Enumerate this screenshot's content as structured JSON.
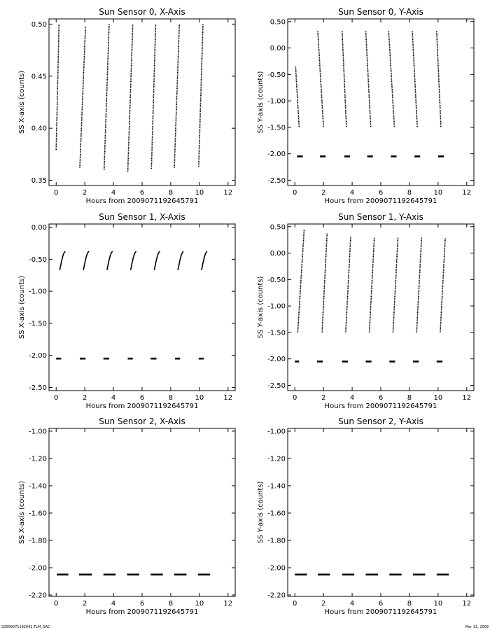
{
  "footer": {
    "left": "S2009071192642.TLM_GAC",
    "right": "Mar 13, 2009"
  },
  "colors": {
    "ink": "#000000",
    "background": "#ffffff"
  },
  "chart_data": [
    {
      "type": "scatter",
      "title": "Sun Sensor 0, X-Axis",
      "xlabel": "Hours from 2009071192645791",
      "ylabel": "SS X-axis (counts)",
      "xlim": [
        -0.5,
        12.5
      ],
      "ylim": [
        0.345,
        0.505
      ],
      "xticks": [
        0,
        2,
        4,
        6,
        8,
        10,
        12
      ],
      "yticks": [
        0.35,
        0.4,
        0.45,
        0.5
      ],
      "ytick_labels": [
        "0.35",
        "0.40",
        "0.45",
        "0.50"
      ],
      "series": [
        {
          "kind": "pass",
          "x0": 0.0,
          "x1": 0.2,
          "y0": 0.379,
          "y1": 0.5
        },
        {
          "kind": "pass",
          "x0": 1.65,
          "x1": 2.05,
          "y0": 0.362,
          "y1": 0.498
        },
        {
          "kind": "pass",
          "x0": 3.35,
          "x1": 3.7,
          "y0": 0.36,
          "y1": 0.5
        },
        {
          "kind": "pass",
          "x0": 5.0,
          "x1": 5.35,
          "y0": 0.358,
          "y1": 0.5
        },
        {
          "kind": "pass",
          "x0": 6.65,
          "x1": 6.95,
          "y0": 0.361,
          "y1": 0.5
        },
        {
          "kind": "pass",
          "x0": 8.25,
          "x1": 8.6,
          "y0": 0.362,
          "y1": 0.5
        },
        {
          "kind": "pass",
          "x0": 9.95,
          "x1": 10.25,
          "y0": 0.363,
          "y1": 0.5
        }
      ]
    },
    {
      "type": "scatter",
      "title": "Sun Sensor 0, Y-Axis",
      "xlabel": "Hours from 2009071192645791",
      "ylabel": "SS Y-axis (counts)",
      "xlim": [
        -0.5,
        12.5
      ],
      "ylim": [
        -2.6,
        0.55
      ],
      "xticks": [
        0,
        2,
        4,
        6,
        8,
        10,
        12
      ],
      "yticks": [
        -2.5,
        -2.0,
        -1.5,
        -1.0,
        -0.5,
        0.0,
        0.5
      ],
      "ytick_labels": [
        "-2.50",
        "-2.00",
        "-1.50",
        "-1.00",
        "-0.50",
        "0.00",
        "0.50"
      ],
      "series": [
        {
          "kind": "pass",
          "x0": 0.05,
          "x1": 0.3,
          "y0": -0.35,
          "y1": -1.5
        },
        {
          "kind": "pass",
          "x0": 1.6,
          "x1": 2.0,
          "y0": 0.32,
          "y1": -1.5
        },
        {
          "kind": "pass",
          "x0": 3.3,
          "x1": 3.6,
          "y0": 0.32,
          "y1": -1.5
        },
        {
          "kind": "pass",
          "x0": 4.95,
          "x1": 5.3,
          "y0": 0.32,
          "y1": -1.5
        },
        {
          "kind": "pass",
          "x0": 6.55,
          "x1": 6.95,
          "y0": 0.32,
          "y1": -1.5
        },
        {
          "kind": "pass",
          "x0": 8.2,
          "x1": 8.55,
          "y0": 0.32,
          "y1": -1.5
        },
        {
          "kind": "pass",
          "x0": 9.9,
          "x1": 10.2,
          "y0": 0.32,
          "y1": -1.5
        },
        {
          "kind": "dash",
          "y": -2.05,
          "segments": [
            [
              0.15,
              0.55
            ],
            [
              1.75,
              2.15
            ],
            [
              3.45,
              3.85
            ],
            [
              5.05,
              5.45
            ],
            [
              6.7,
              7.1
            ],
            [
              8.35,
              8.75
            ],
            [
              10.0,
              10.4
            ]
          ]
        }
      ]
    },
    {
      "type": "scatter",
      "title": "Sun Sensor 1, X-Axis",
      "xlabel": "Hours from 2009071192645791",
      "ylabel": "SS X-axis (counts)",
      "xlim": [
        -0.5,
        12.5
      ],
      "ylim": [
        -2.55,
        0.05
      ],
      "xticks": [
        0,
        2,
        4,
        6,
        8,
        10,
        12
      ],
      "yticks": [
        -2.5,
        -2.0,
        -1.5,
        -1.0,
        -0.5,
        0.0
      ],
      "ytick_labels": [
        "-2.50",
        "-2.00",
        "-1.50",
        "-1.00",
        "-0.50",
        "0.00"
      ],
      "series": [
        {
          "kind": "curve",
          "x0": 0.25,
          "x1": 0.65,
          "y0": -0.67,
          "y1": -0.38
        },
        {
          "kind": "curve",
          "x0": 1.9,
          "x1": 2.3,
          "y0": -0.67,
          "y1": -0.38
        },
        {
          "kind": "curve",
          "x0": 3.55,
          "x1": 3.95,
          "y0": -0.67,
          "y1": -0.38
        },
        {
          "kind": "curve",
          "x0": 5.2,
          "x1": 5.6,
          "y0": -0.67,
          "y1": -0.38
        },
        {
          "kind": "curve",
          "x0": 6.85,
          "x1": 7.25,
          "y0": -0.67,
          "y1": -0.38
        },
        {
          "kind": "curve",
          "x0": 8.5,
          "x1": 8.9,
          "y0": -0.67,
          "y1": -0.38
        },
        {
          "kind": "curve",
          "x0": 10.15,
          "x1": 10.55,
          "y0": -0.67,
          "y1": -0.38
        },
        {
          "kind": "dash",
          "y": -2.05,
          "segments": [
            [
              0.0,
              0.35
            ],
            [
              1.65,
              2.05
            ],
            [
              3.3,
              3.7
            ],
            [
              5.0,
              5.35
            ],
            [
              6.6,
              7.0
            ],
            [
              8.3,
              8.65
            ],
            [
              9.95,
              10.3
            ]
          ]
        }
      ]
    },
    {
      "type": "scatter",
      "title": "Sun Sensor 1, Y-Axis",
      "xlabel": "Hours from 2009071192645791",
      "ylabel": "SS Y-axis (counts)",
      "xlim": [
        -0.5,
        12.5
      ],
      "ylim": [
        -2.6,
        0.55
      ],
      "xticks": [
        0,
        2,
        4,
        6,
        8,
        10,
        12
      ],
      "yticks": [
        -2.5,
        -2.0,
        -1.5,
        -1.0,
        -0.5,
        0.0,
        0.5
      ],
      "ytick_labels": [
        "-2.50",
        "-2.00",
        "-1.50",
        "-1.00",
        "-0.50",
        "0.00",
        "0.50"
      ],
      "series": [
        {
          "kind": "pass",
          "x0": 0.2,
          "x1": 0.65,
          "y0": -1.5,
          "y1": 0.45
        },
        {
          "kind": "pass",
          "x0": 1.9,
          "x1": 2.25,
          "y0": -1.5,
          "y1": 0.37
        },
        {
          "kind": "pass",
          "x0": 3.55,
          "x1": 3.9,
          "y0": -1.5,
          "y1": 0.32
        },
        {
          "kind": "pass",
          "x0": 5.2,
          "x1": 5.55,
          "y0": -1.5,
          "y1": 0.3
        },
        {
          "kind": "pass",
          "x0": 6.85,
          "x1": 7.2,
          "y0": -1.5,
          "y1": 0.3
        },
        {
          "kind": "pass",
          "x0": 8.5,
          "x1": 8.85,
          "y0": -1.5,
          "y1": 0.3
        },
        {
          "kind": "pass",
          "x0": 10.15,
          "x1": 10.5,
          "y0": -1.5,
          "y1": 0.28
        },
        {
          "kind": "dash",
          "y": -2.05,
          "segments": [
            [
              0.0,
              0.3
            ],
            [
              1.55,
              1.95
            ],
            [
              3.3,
              3.7
            ],
            [
              4.95,
              5.35
            ],
            [
              6.6,
              7.0
            ],
            [
              8.25,
              8.65
            ],
            [
              9.9,
              10.3
            ]
          ]
        }
      ]
    },
    {
      "type": "scatter",
      "title": "Sun Sensor 2, X-Axis",
      "xlabel": "Hours from 2009071192645791",
      "ylabel": "SS X-axis (counts)",
      "xlim": [
        -0.5,
        12.5
      ],
      "ylim": [
        -2.21,
        -0.98
      ],
      "xticks": [
        0,
        2,
        4,
        6,
        8,
        10,
        12
      ],
      "yticks": [
        -2.2,
        -2.0,
        -1.8,
        -1.6,
        -1.4,
        -1.2,
        -1.0
      ],
      "ytick_labels": [
        "-2.20",
        "-2.00",
        "-1.80",
        "-1.60",
        "-1.40",
        "-1.20",
        "-1.00"
      ],
      "series": [
        {
          "kind": "dash",
          "y": -2.05,
          "segments": [
            [
              0.05,
              0.85
            ],
            [
              1.6,
              2.5
            ],
            [
              3.3,
              4.15
            ],
            [
              4.95,
              5.8
            ],
            [
              6.6,
              7.45
            ],
            [
              8.25,
              9.1
            ],
            [
              9.9,
              10.75
            ]
          ]
        }
      ]
    },
    {
      "type": "scatter",
      "title": "Sun Sensor 2, Y-Axis",
      "xlabel": "Hours from 2009071192645791",
      "ylabel": "SS Y-axis (counts)",
      "xlim": [
        -0.5,
        12.5
      ],
      "ylim": [
        -2.21,
        -0.98
      ],
      "xticks": [
        0,
        2,
        4,
        6,
        8,
        10,
        12
      ],
      "yticks": [
        -2.2,
        -2.0,
        -1.8,
        -1.6,
        -1.4,
        -1.2,
        -1.0
      ],
      "ytick_labels": [
        "-2.20",
        "-2.00",
        "-1.80",
        "-1.60",
        "-1.40",
        "-1.20",
        "-1.00"
      ],
      "series": [
        {
          "kind": "dash",
          "y": -2.05,
          "segments": [
            [
              0.0,
              0.85
            ],
            [
              1.6,
              2.45
            ],
            [
              3.3,
              4.15
            ],
            [
              4.95,
              5.8
            ],
            [
              6.6,
              7.45
            ],
            [
              8.25,
              9.1
            ],
            [
              9.9,
              10.75
            ]
          ]
        }
      ]
    }
  ]
}
